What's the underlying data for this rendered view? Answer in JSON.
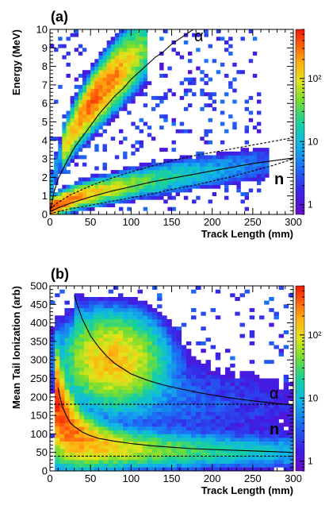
{
  "chart_data": [
    {
      "type": "heatmap",
      "panel_label": "(a)",
      "xlabel": "Track Length (mm)",
      "ylabel": "Energy (MeV)",
      "xlim": [
        0,
        300
      ],
      "ylim": [
        0,
        10
      ],
      "x_ticks": [
        "0",
        "50",
        "100",
        "150",
        "200",
        "250",
        "300"
      ],
      "y_ticks": [
        "0",
        "1",
        "2",
        "3",
        "4",
        "5",
        "6",
        "7",
        "8",
        "9",
        "10"
      ],
      "colorbar_ticks": [
        "1",
        "10",
        "10²"
      ],
      "colorbar_range": [
        0.7,
        600
      ],
      "log_color_scale": true,
      "annotations": [
        {
          "text": "α",
          "x": 190,
          "y": 9.6
        },
        {
          "text": "n",
          "x": 262,
          "y": 1.6
        }
      ],
      "alpha_band": {
        "x_range": [
          15,
          115
        ],
        "center_curve_exponent": 0.5,
        "peak_count": 320
      },
      "neutron_band": {
        "x_range": [
          5,
          260
        ],
        "peak_count": 450
      },
      "curves": [
        {
          "name": "alpha_track_energy",
          "style": "solid",
          "x": [
            0,
            5,
            10,
            20,
            30,
            40,
            50,
            60,
            70,
            80,
            90,
            100,
            110,
            120,
            130,
            140,
            150,
            160,
            170,
            180,
            190,
            200
          ],
          "y": [
            0.1,
            1.2,
            1.9,
            2.8,
            3.6,
            4.2,
            4.8,
            5.4,
            5.9,
            6.4,
            6.8,
            7.3,
            7.7,
            8.1,
            8.5,
            8.8,
            9.2,
            9.5,
            9.8,
            10.1,
            10.4,
            10.7
          ]
        },
        {
          "name": "neutron_track_energy",
          "style": "solid",
          "x": [
            0,
            10,
            25,
            50,
            75,
            100,
            125,
            150,
            175,
            200,
            225,
            250,
            275,
            300
          ],
          "y": [
            0.15,
            0.35,
            0.6,
            0.95,
            1.25,
            1.5,
            1.75,
            1.95,
            2.15,
            2.35,
            2.55,
            2.75,
            2.9,
            3.05
          ]
        },
        {
          "name": "neutron_upper_bound",
          "style": "dashed",
          "x": [
            0,
            10,
            25,
            50,
            75,
            100,
            125,
            150,
            175,
            200,
            225,
            250,
            275,
            300
          ],
          "y": [
            0.3,
            0.65,
            1.05,
            1.55,
            1.95,
            2.3,
            2.6,
            2.9,
            3.15,
            3.35,
            3.55,
            3.75,
            3.95,
            4.15
          ]
        },
        {
          "name": "neutron_lower_bound",
          "style": "dashed",
          "x": [
            0,
            25,
            50,
            75,
            100,
            125,
            150,
            175,
            200,
            225,
            250,
            275,
            300
          ],
          "y": [
            0.05,
            0.3,
            0.5,
            0.7,
            0.9,
            1.1,
            1.35,
            1.55,
            1.8,
            2.05,
            2.35,
            2.65,
            3.0
          ]
        }
      ]
    },
    {
      "type": "heatmap",
      "panel_label": "(b)",
      "xlabel": "Track Length (mm)",
      "ylabel": "Mean Tail Ionization (arb)",
      "xlim": [
        0,
        300
      ],
      "ylim": [
        0,
        500
      ],
      "x_ticks": [
        "0",
        "50",
        "100",
        "150",
        "200",
        "250",
        "300"
      ],
      "y_ticks": [
        "0",
        "50",
        "100",
        "150",
        "200",
        "250",
        "300",
        "350",
        "400",
        "450",
        "500"
      ],
      "colorbar_ticks": [
        "1",
        "10",
        "10²"
      ],
      "colorbar_range": [
        0.7,
        600
      ],
      "log_color_scale": true,
      "annotations": [
        {
          "text": "α",
          "x": 285,
          "y": 210
        },
        {
          "text": "n",
          "x": 285,
          "y": 115
        }
      ],
      "alpha_region": {
        "center": [
          78,
          300
        ],
        "peak_count": 150
      },
      "neutron_region": {
        "x_range": [
          5,
          300
        ],
        "peak_count": 500
      },
      "curves": [
        {
          "name": "alpha_tail_curve",
          "style": "solid",
          "x": [
            30,
            35,
            40,
            50,
            60,
            70,
            80,
            100,
            120,
            140,
            160,
            180,
            200,
            220,
            240,
            260,
            280,
            300
          ],
          "y": [
            475,
            440,
            410,
            365,
            335,
            310,
            290,
            262,
            245,
            232,
            222,
            213,
            205,
            198,
            192,
            187,
            182,
            178
          ]
        },
        {
          "name": "neutron_tail_curve",
          "style": "solid",
          "x": [
            10,
            15,
            20,
            25,
            30,
            40,
            50,
            60,
            80,
            100,
            125,
            150,
            175,
            200,
            250,
            300
          ],
          "y": [
            225,
            175,
            150,
            130,
            120,
            105,
            95,
            88,
            80,
            74,
            68,
            64,
            60,
            58,
            54,
            50
          ]
        },
        {
          "name": "upper_cut",
          "style": "dashed",
          "x": [
            0,
            300
          ],
          "y": [
            180,
            180
          ]
        },
        {
          "name": "lower_cut",
          "style": "dashed",
          "x": [
            0,
            300
          ],
          "y": [
            40,
            40
          ]
        }
      ]
    }
  ]
}
